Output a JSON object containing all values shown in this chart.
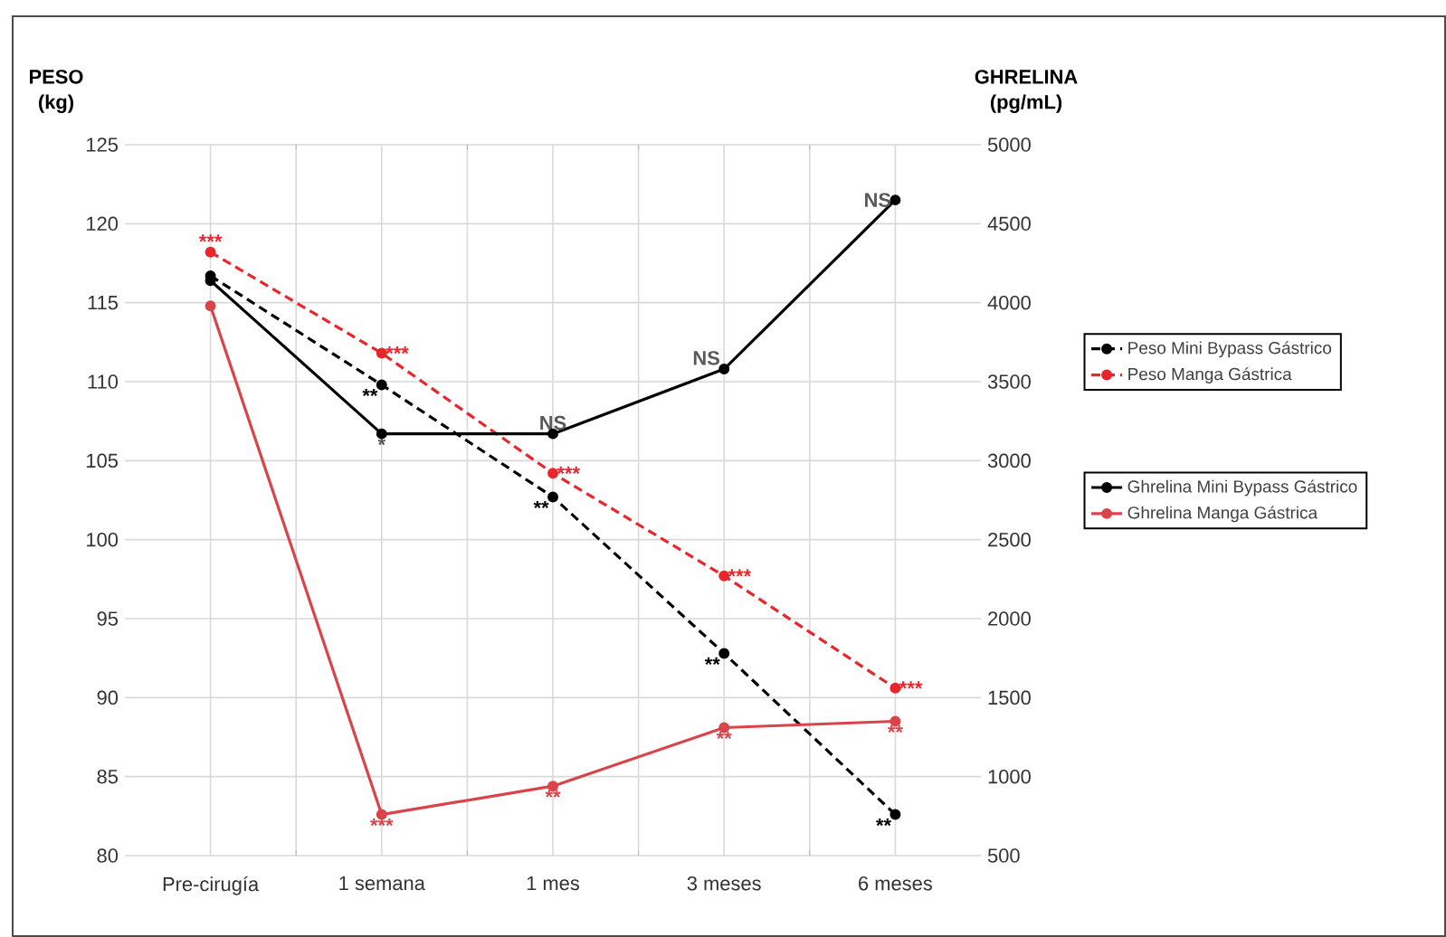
{
  "chart_data": {
    "type": "line",
    "ylabel": "PESO (kg)",
    "y2label": "GHRELINA (pg/mL)",
    "categories": [
      "Pre-cirugía",
      "1 semana",
      "1 mes",
      "3 meses",
      "6 meses"
    ],
    "ylim": [
      80,
      125
    ],
    "yticks": [
      80,
      85,
      90,
      95,
      100,
      105,
      110,
      115,
      120,
      125
    ],
    "y2lim": [
      500,
      5000
    ],
    "y2ticks": [
      500,
      1000,
      1500,
      2000,
      2500,
      3000,
      3500,
      4000,
      4500,
      5000
    ],
    "grid": true,
    "legend": "right",
    "marker": "circle",
    "series": [
      {
        "name": "Peso Mini Bypass Gástrico",
        "color": "#000000",
        "axis": "y",
        "line_style": "dashed",
        "values": [
          116.7,
          109.8,
          102.7,
          92.8,
          82.6
        ],
        "value_labels": [
          null,
          "**",
          "**",
          "**",
          "**"
        ]
      },
      {
        "name": "Peso Manga Gástrica",
        "color": "#e8262c",
        "axis": "y",
        "line_style": "dashed",
        "values": [
          118.2,
          111.8,
          104.2,
          97.7,
          90.6
        ],
        "value_labels": [
          "***",
          "***",
          "***",
          "***",
          "***"
        ]
      },
      {
        "name": "Ghrelina Mini Bypass Gástrico",
        "color": "#000000",
        "axis": "y2",
        "line_style": "solid",
        "values": [
          4140,
          3170,
          3170,
          3580,
          4650
        ],
        "value_labels": [
          null,
          "*",
          "NS",
          "NS",
          "NS"
        ]
      },
      {
        "name": "Ghrelina Manga Gástrica",
        "color": "#d9444a",
        "axis": "y2",
        "line_style": "solid",
        "values": [
          3980,
          760,
          940,
          1310,
          1350
        ],
        "value_labels": [
          null,
          "***",
          "**",
          "**",
          "**"
        ]
      }
    ]
  }
}
